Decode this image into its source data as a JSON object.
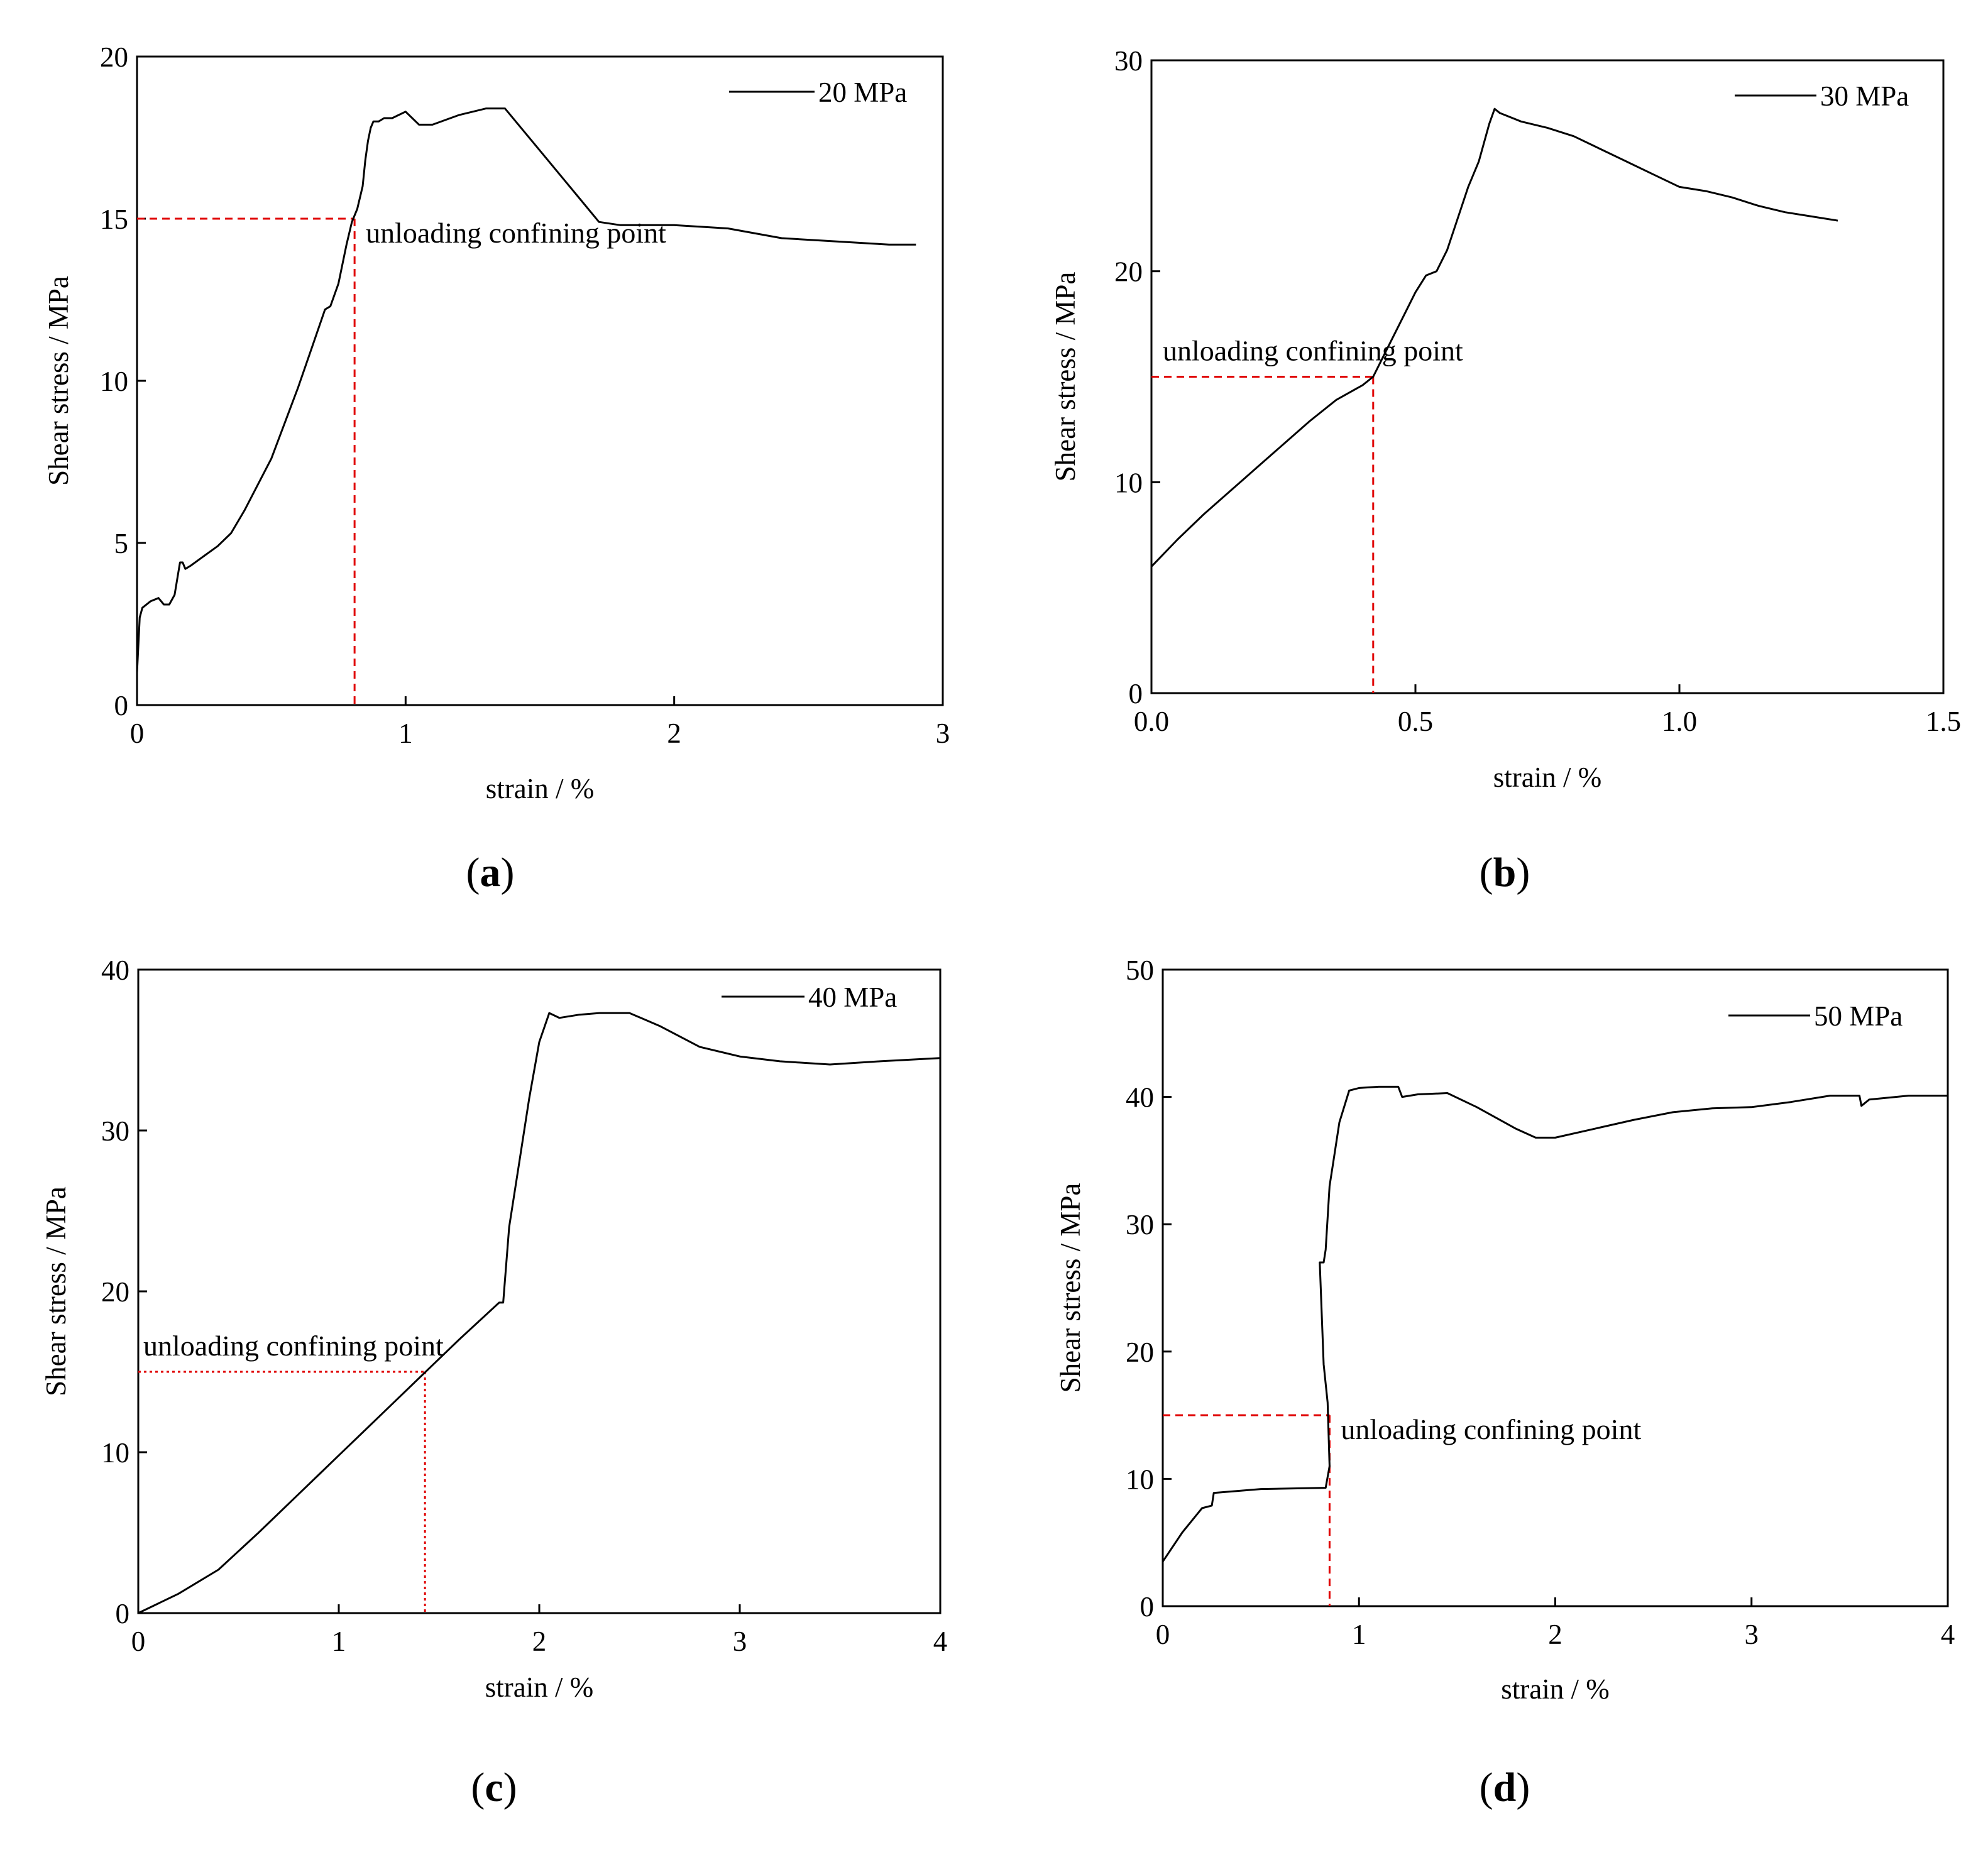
{
  "chart_data": [
    {
      "id": "a",
      "type": "line",
      "caption_letter": "a",
      "xlabel": "strain / %",
      "ylabel": "Shear stress / MPa",
      "xlim": [
        0,
        3
      ],
      "ylim": [
        0,
        20
      ],
      "xticks": [
        "0",
        "1",
        "2",
        "3"
      ],
      "yticks": [
        "0",
        "5",
        "10",
        "15",
        "20"
      ],
      "legend": "20 MPa",
      "annotation": "unloading confining point",
      "unload_point": {
        "x": 0.81,
        "y": 15
      },
      "series": [
        {
          "name": "20 MPa",
          "x": [
            0,
            0.01,
            0.02,
            0.05,
            0.08,
            0.1,
            0.12,
            0.14,
            0.15,
            0.16,
            0.17,
            0.18,
            0.2,
            0.25,
            0.3,
            0.35,
            0.4,
            0.5,
            0.6,
            0.65,
            0.7,
            0.72,
            0.75,
            0.78,
            0.8,
            0.82,
            0.84,
            0.85,
            0.86,
            0.87,
            0.88,
            0.9,
            0.92,
            0.95,
            1.0,
            1.05,
            1.1,
            1.2,
            1.3,
            1.37,
            1.45,
            1.55,
            1.65,
            1.72,
            1.8,
            1.9,
            2.0,
            2.2,
            2.4,
            2.6,
            2.8,
            2.9
          ],
          "y": [
            1,
            2.7,
            3.0,
            3.2,
            3.3,
            3.1,
            3.1,
            3.4,
            3.9,
            4.4,
            4.4,
            4.2,
            4.3,
            4.6,
            4.9,
            5.3,
            6.0,
            7.6,
            9.8,
            11.0,
            12.2,
            12.3,
            13.0,
            14.2,
            14.9,
            15.3,
            16.0,
            16.8,
            17.4,
            17.8,
            18.0,
            18.0,
            18.1,
            18.1,
            18.3,
            17.9,
            17.9,
            18.2,
            18.4,
            18.4,
            17.6,
            16.6,
            15.6,
            14.9,
            14.8,
            14.8,
            14.8,
            14.7,
            14.4,
            14.3,
            14.2,
            14.2
          ]
        }
      ]
    },
    {
      "id": "b",
      "type": "line",
      "caption_letter": "b",
      "xlabel": "strain / %",
      "ylabel": "Shear stress / MPa",
      "xlim": [
        0,
        1.5
      ],
      "ylim": [
        0,
        30
      ],
      "xticks": [
        "0.0",
        "0.5",
        "1.0",
        "1.5"
      ],
      "yticks": [
        "0",
        "10",
        "20",
        "30"
      ],
      "legend": "30 MPa",
      "annotation": "unloading confining point",
      "unload_point": {
        "x": 0.42,
        "y": 15
      },
      "series": [
        {
          "name": "30 MPa",
          "x": [
            0,
            0.05,
            0.1,
            0.15,
            0.2,
            0.25,
            0.3,
            0.35,
            0.4,
            0.42,
            0.45,
            0.48,
            0.5,
            0.52,
            0.54,
            0.56,
            0.58,
            0.6,
            0.62,
            0.64,
            0.65,
            0.66,
            0.7,
            0.75,
            0.8,
            0.85,
            0.9,
            0.95,
            1.0,
            1.05,
            1.1,
            1.15,
            1.2,
            1.25,
            1.3
          ],
          "y": [
            6,
            7.3,
            8.5,
            9.6,
            10.7,
            11.8,
            12.9,
            13.9,
            14.6,
            15.0,
            16.5,
            18.0,
            19.0,
            19.8,
            20.0,
            21.0,
            22.5,
            24.0,
            25.2,
            27.0,
            27.7,
            27.5,
            27.1,
            26.8,
            26.4,
            25.8,
            25.2,
            24.6,
            24.0,
            23.8,
            23.5,
            23.1,
            22.8,
            22.6,
            22.4
          ]
        }
      ]
    },
    {
      "id": "c",
      "type": "line",
      "caption_letter": "c",
      "xlabel": "strain / %",
      "ylabel": "Shear stress / MPa",
      "xlim": [
        0,
        4
      ],
      "ylim": [
        0,
        40
      ],
      "xticks": [
        "0",
        "1",
        "2",
        "3",
        "4"
      ],
      "yticks": [
        "0",
        "10",
        "20",
        "30",
        "40"
      ],
      "legend": "40 MPa",
      "annotation": "unloading confining point",
      "unload_point": {
        "x": 1.43,
        "y": 15
      },
      "series": [
        {
          "name": "40 MPa",
          "x": [
            0,
            0.2,
            0.4,
            0.6,
            0.8,
            1.0,
            1.2,
            1.4,
            1.6,
            1.8,
            1.82,
            1.85,
            1.9,
            1.95,
            2.0,
            2.05,
            2.1,
            2.2,
            2.3,
            2.45,
            2.6,
            2.8,
            3.0,
            3.2,
            3.45,
            3.7,
            4.0
          ],
          "y": [
            0,
            1.2,
            2.7,
            5.0,
            7.4,
            9.8,
            12.2,
            14.6,
            17.0,
            19.3,
            19.3,
            24.0,
            28.0,
            32.0,
            35.5,
            37.3,
            37.0,
            37.2,
            37.3,
            37.3,
            36.5,
            35.2,
            34.6,
            34.3,
            34.1,
            34.3,
            34.5
          ]
        }
      ]
    },
    {
      "id": "d",
      "type": "line",
      "caption_letter": "d",
      "xlabel": "strain / %",
      "ylabel": "Shear stress / MPa",
      "xlim": [
        0,
        4
      ],
      "ylim": [
        0,
        50
      ],
      "xticks": [
        "0",
        "1",
        "2",
        "3",
        "4"
      ],
      "yticks": [
        "0",
        "10",
        "20",
        "30",
        "40",
        "50"
      ],
      "legend": "50 MPa",
      "annotation": "unloading confining point",
      "unload_point": {
        "x": 0.85,
        "y": 15
      },
      "series": [
        {
          "name": "50 MPa",
          "x": [
            0,
            0.1,
            0.2,
            0.25,
            0.26,
            0.5,
            0.83,
            0.85,
            0.84,
            0.82,
            0.8,
            0.82,
            0.83,
            0.85,
            0.87,
            0.9,
            0.95,
            1.0,
            1.1,
            1.2,
            1.22,
            1.3,
            1.45,
            1.6,
            1.8,
            1.9,
            2.0,
            2.2,
            2.4,
            2.6,
            2.8,
            3.0,
            3.2,
            3.4,
            3.55,
            3.56,
            3.6,
            3.8,
            4.0
          ],
          "y": [
            3.5,
            5.8,
            7.7,
            7.9,
            8.9,
            9.2,
            9.3,
            11.0,
            16.0,
            19.0,
            27.0,
            27.0,
            28.0,
            33.0,
            35.0,
            38.0,
            40.5,
            40.7,
            40.8,
            40.8,
            40.0,
            40.2,
            40.3,
            39.2,
            37.5,
            36.8,
            36.8,
            37.5,
            38.2,
            38.8,
            39.1,
            39.2,
            39.6,
            40.1,
            40.1,
            39.3,
            39.8,
            40.1,
            40.1
          ]
        }
      ]
    }
  ]
}
